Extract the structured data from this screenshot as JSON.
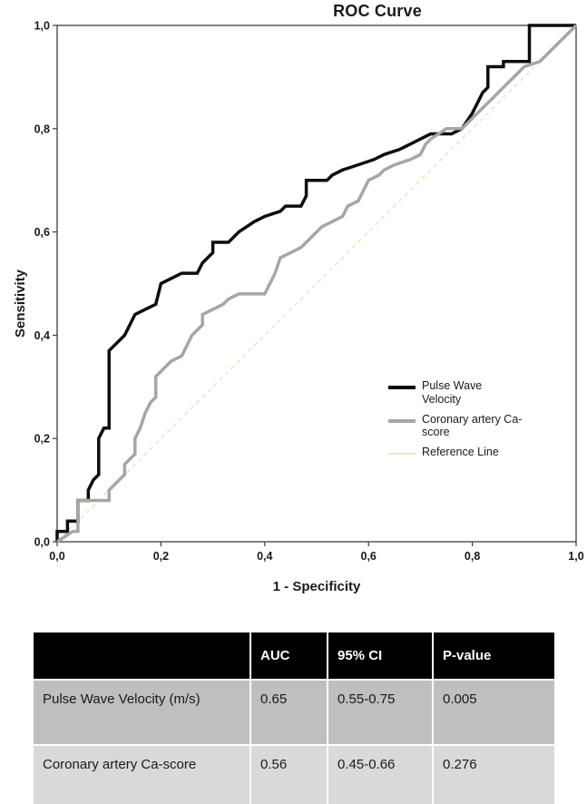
{
  "chart_data": {
    "type": "line",
    "title": "ROC Curve",
    "xlabel": "1 - Specificity",
    "ylabel": "Sensitivity",
    "xlim": [
      0,
      1
    ],
    "ylim": [
      0,
      1
    ],
    "xticks": [
      0,
      0.2,
      0.4,
      0.6,
      0.8,
      1.0
    ],
    "yticks": [
      0,
      0.2,
      0.4,
      0.6,
      0.8,
      1.0
    ],
    "xtick_labels": [
      "0,0",
      "0,2",
      "0,4",
      "0,6",
      "0,8",
      "1,0"
    ],
    "ytick_labels": [
      "0,0",
      "0,2",
      "0,4",
      "0,6",
      "0,8",
      "1,0"
    ],
    "grid": false,
    "legend_position": "inside lower-right",
    "series": [
      {
        "name": "Pulse Wave Velocity",
        "color": "#0d0d0d",
        "width": 3.5,
        "style": "solid",
        "points": [
          [
            0,
            0
          ],
          [
            0,
            0.02
          ],
          [
            0.02,
            0.02
          ],
          [
            0.02,
            0.04
          ],
          [
            0.04,
            0.04
          ],
          [
            0.04,
            0.08
          ],
          [
            0.06,
            0.08
          ],
          [
            0.06,
            0.1
          ],
          [
            0.07,
            0.12
          ],
          [
            0.08,
            0.13
          ],
          [
            0.08,
            0.2
          ],
          [
            0.09,
            0.22
          ],
          [
            0.1,
            0.22
          ],
          [
            0.1,
            0.37
          ],
          [
            0.11,
            0.38
          ],
          [
            0.13,
            0.4
          ],
          [
            0.14,
            0.42
          ],
          [
            0.15,
            0.44
          ],
          [
            0.17,
            0.45
          ],
          [
            0.19,
            0.46
          ],
          [
            0.2,
            0.5
          ],
          [
            0.22,
            0.51
          ],
          [
            0.24,
            0.52
          ],
          [
            0.27,
            0.52
          ],
          [
            0.28,
            0.54
          ],
          [
            0.3,
            0.56
          ],
          [
            0.3,
            0.58
          ],
          [
            0.33,
            0.58
          ],
          [
            0.35,
            0.6
          ],
          [
            0.38,
            0.62
          ],
          [
            0.4,
            0.63
          ],
          [
            0.43,
            0.64
          ],
          [
            0.44,
            0.65
          ],
          [
            0.47,
            0.65
          ],
          [
            0.48,
            0.67
          ],
          [
            0.48,
            0.7
          ],
          [
            0.52,
            0.7
          ],
          [
            0.53,
            0.71
          ],
          [
            0.55,
            0.72
          ],
          [
            0.58,
            0.73
          ],
          [
            0.61,
            0.74
          ],
          [
            0.63,
            0.75
          ],
          [
            0.66,
            0.76
          ],
          [
            0.68,
            0.77
          ],
          [
            0.7,
            0.78
          ],
          [
            0.72,
            0.79
          ],
          [
            0.76,
            0.79
          ],
          [
            0.78,
            0.8
          ],
          [
            0.8,
            0.83
          ],
          [
            0.81,
            0.85
          ],
          [
            0.82,
            0.87
          ],
          [
            0.83,
            0.88
          ],
          [
            0.83,
            0.92
          ],
          [
            0.86,
            0.92
          ],
          [
            0.86,
            0.93
          ],
          [
            0.91,
            0.93
          ],
          [
            0.91,
            1.0
          ],
          [
            1.0,
            1.0
          ]
        ]
      },
      {
        "name": "Coronary artery Ca-score",
        "color": "#a6a6a6",
        "width": 3.5,
        "style": "solid",
        "points": [
          [
            0,
            0
          ],
          [
            0.03,
            0.02
          ],
          [
            0.04,
            0.02
          ],
          [
            0.04,
            0.08
          ],
          [
            0.1,
            0.08
          ],
          [
            0.1,
            0.1
          ],
          [
            0.12,
            0.12
          ],
          [
            0.13,
            0.13
          ],
          [
            0.13,
            0.15
          ],
          [
            0.15,
            0.17
          ],
          [
            0.15,
            0.2
          ],
          [
            0.16,
            0.22
          ],
          [
            0.17,
            0.25
          ],
          [
            0.18,
            0.27
          ],
          [
            0.19,
            0.28
          ],
          [
            0.19,
            0.32
          ],
          [
            0.2,
            0.33
          ],
          [
            0.22,
            0.35
          ],
          [
            0.24,
            0.36
          ],
          [
            0.25,
            0.38
          ],
          [
            0.26,
            0.4
          ],
          [
            0.28,
            0.42
          ],
          [
            0.28,
            0.44
          ],
          [
            0.3,
            0.45
          ],
          [
            0.32,
            0.46
          ],
          [
            0.33,
            0.47
          ],
          [
            0.35,
            0.48
          ],
          [
            0.4,
            0.48
          ],
          [
            0.41,
            0.5
          ],
          [
            0.42,
            0.52
          ],
          [
            0.43,
            0.55
          ],
          [
            0.45,
            0.56
          ],
          [
            0.47,
            0.57
          ],
          [
            0.48,
            0.58
          ],
          [
            0.5,
            0.6
          ],
          [
            0.51,
            0.61
          ],
          [
            0.53,
            0.62
          ],
          [
            0.55,
            0.63
          ],
          [
            0.56,
            0.65
          ],
          [
            0.58,
            0.66
          ],
          [
            0.59,
            0.68
          ],
          [
            0.6,
            0.7
          ],
          [
            0.62,
            0.71
          ],
          [
            0.63,
            0.72
          ],
          [
            0.65,
            0.73
          ],
          [
            0.68,
            0.74
          ],
          [
            0.7,
            0.75
          ],
          [
            0.71,
            0.77
          ],
          [
            0.72,
            0.78
          ],
          [
            0.75,
            0.8
          ],
          [
            0.78,
            0.8
          ],
          [
            0.8,
            0.82
          ],
          [
            0.82,
            0.84
          ],
          [
            0.84,
            0.86
          ],
          [
            0.86,
            0.88
          ],
          [
            0.88,
            0.9
          ],
          [
            0.9,
            0.92
          ],
          [
            0.93,
            0.93
          ],
          [
            1.0,
            1.0
          ]
        ]
      },
      {
        "name": "Reference Line",
        "color": "#e9e9c0",
        "width": 1.5,
        "style": "dashed",
        "points": [
          [
            0,
            0
          ],
          [
            1,
            1
          ]
        ]
      }
    ]
  },
  "legend": {
    "items": [
      {
        "label": "Pulse Wave Velocity",
        "color": "#0d0d0d"
      },
      {
        "label": "Coronary artery Ca-score",
        "color": "#a6a6a6"
      },
      {
        "label": "Reference Line",
        "color": "#e9e9c0"
      }
    ]
  },
  "table": {
    "headers": [
      "",
      "AUC",
      "95% CI",
      "P-value"
    ],
    "rows": [
      {
        "label": "Pulse Wave Velocity (m/s)",
        "auc": "0.65",
        "ci": "0.55-0.75",
        "p": "0.005"
      },
      {
        "label": "Coronary artery Ca-score",
        "auc": "0.56",
        "ci": "0.45-0.66",
        "p": "0.276"
      }
    ],
    "colors": {
      "header_bg": "#000000",
      "header_text": "#ffffff",
      "row1_bg": "#bfbfbf",
      "row2_bg": "#d9d9d9"
    }
  }
}
